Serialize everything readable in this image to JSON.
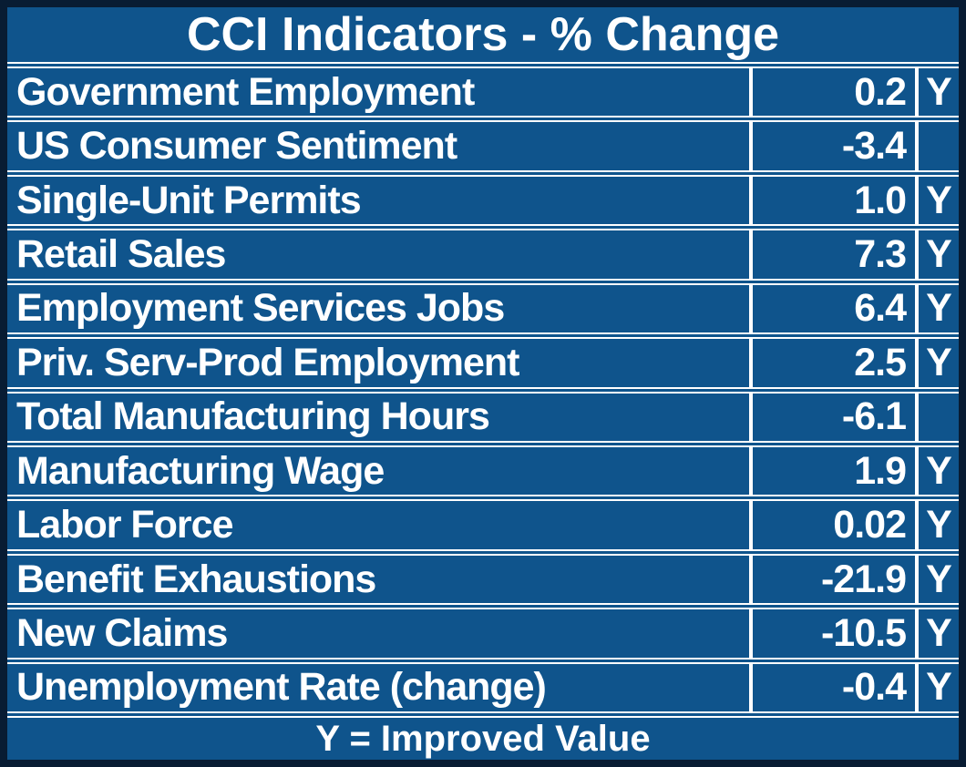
{
  "title": "CCI Indicators - % Change",
  "footer": "Y = Improved Value",
  "colors": {
    "background_blue": "#0f548c",
    "outer_border": "#081c33",
    "grid_lines": "#ffffff",
    "text": "#ffffff"
  },
  "table": {
    "rows": [
      {
        "label": "Government Employment",
        "value": "0.2",
        "improved": "Y"
      },
      {
        "label": "US Consumer Sentiment",
        "value": "-3.4",
        "improved": ""
      },
      {
        "label": "Single-Unit Permits",
        "value": "1.0",
        "improved": "Y"
      },
      {
        "label": "Retail Sales",
        "value": "7.3",
        "improved": "Y"
      },
      {
        "label": "Employment Services Jobs",
        "value": "6.4",
        "improved": "Y"
      },
      {
        "label": "Priv. Serv-Prod Employment",
        "value": "2.5",
        "improved": "Y"
      },
      {
        "label": "Total Manufacturing Hours",
        "value": "-6.1",
        "improved": ""
      },
      {
        "label": "Manufacturing Wage",
        "value": "1.9",
        "improved": "Y"
      },
      {
        "label": "Labor Force",
        "value": "0.02",
        "improved": "Y"
      },
      {
        "label": "Benefit Exhaustions",
        "value": "-21.9",
        "improved": "Y"
      },
      {
        "label": "New Claims",
        "value": "-10.5",
        "improved": "Y"
      },
      {
        "label": "Unemployment Rate (change)",
        "value": "-0.4",
        "improved": "Y"
      }
    ]
  },
  "chart_data": {
    "type": "table",
    "title": "CCI Indicators - % Change",
    "columns": [
      "indicator",
      "pct_change",
      "improved_flag"
    ],
    "rows": [
      [
        "Government Employment",
        0.2,
        "Y"
      ],
      [
        "US Consumer Sentiment",
        -3.4,
        ""
      ],
      [
        "Single-Unit Permits",
        1.0,
        "Y"
      ],
      [
        "Retail Sales",
        7.3,
        "Y"
      ],
      [
        "Employment Services Jobs",
        6.4,
        "Y"
      ],
      [
        "Priv. Serv-Prod Employment",
        2.5,
        "Y"
      ],
      [
        "Total Manufacturing Hours",
        -6.1,
        ""
      ],
      [
        "Manufacturing Wage",
        1.9,
        "Y"
      ],
      [
        "Labor Force",
        0.02,
        "Y"
      ],
      [
        "Benefit Exhaustions",
        -21.9,
        "Y"
      ],
      [
        "New Claims",
        -10.5,
        "Y"
      ],
      [
        "Unemployment Rate (change)",
        -0.4,
        "Y"
      ]
    ],
    "footnote": "Y = Improved Value",
    "legend_position": "bottom",
    "grid": true
  }
}
